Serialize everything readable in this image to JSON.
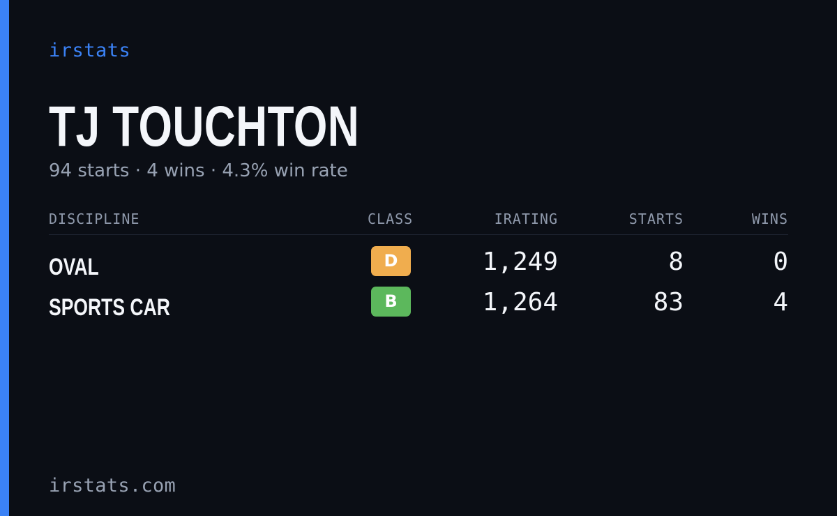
{
  "theme": {
    "accent": "#3b82f6",
    "background": "#0b0e15",
    "text": "#f4f6fa",
    "muted": "#98a2b3"
  },
  "brand": {
    "label": "irstats"
  },
  "driver": {
    "name": "TJ TOUCHTON",
    "summary": "94 starts · 4 wins · 4.3% win rate"
  },
  "table": {
    "headers": {
      "discipline": "DISCIPLINE",
      "class": "CLASS",
      "irating": "IRATING",
      "starts": "STARTS",
      "wins": "WINS"
    },
    "rows": [
      {
        "discipline": "OVAL",
        "class": "D",
        "class_color": "#f0ad4e",
        "irating": "1,249",
        "starts": "8",
        "wins": "0"
      },
      {
        "discipline": "SPORTS CAR",
        "class": "B",
        "class_color": "#5cb85c",
        "irating": "1,264",
        "starts": "83",
        "wins": "4"
      }
    ]
  },
  "footer": {
    "domain": "irstats.com"
  }
}
